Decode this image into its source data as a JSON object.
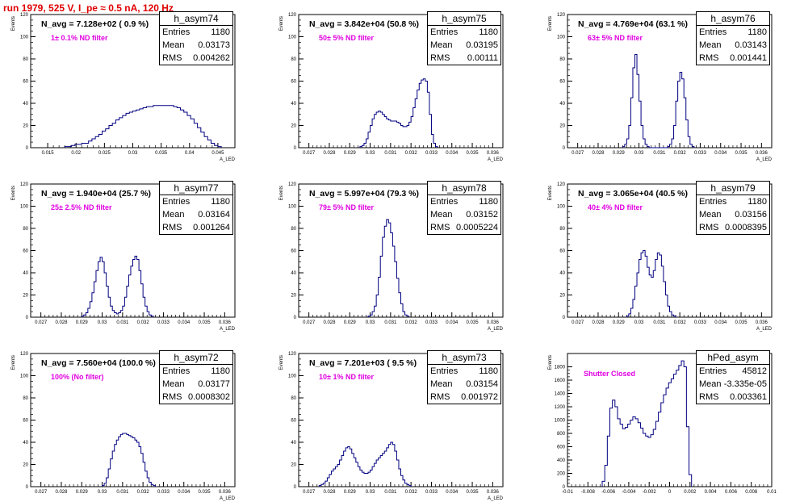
{
  "page": {
    "title": "run 1979,   525 V, I_pe ≈ 0.5 nA, 120 Hz",
    "title_color": "#e00000",
    "histogram_color": "#000080",
    "label_color": "#e000e0"
  },
  "chart_data": [
    {
      "type": "histogram",
      "hist_name": "h_asym74",
      "ylabel": "Events",
      "xlabel": "A_LED",
      "xlim": [
        0.012,
        0.048
      ],
      "xticks": [
        0.015,
        0.02,
        0.025,
        0.03,
        0.035,
        0.04,
        0.045
      ],
      "ylim": [
        0,
        120
      ],
      "yticks": [
        0,
        20,
        40,
        60,
        80,
        100,
        120
      ],
      "header": "N_avg = 7.128e+02 ( 0.9 %)",
      "note": "1± 0.1% ND filter",
      "stats": [
        {
          "k": "Entries",
          "v": "1180"
        },
        {
          "k": "Mean",
          "v": "0.03173"
        },
        {
          "k": "RMS",
          "v": "0.004262"
        }
      ],
      "bin_start": 0.018,
      "bin_width": 0.0006,
      "counts": [
        1,
        1,
        2,
        3,
        3,
        4,
        4,
        6,
        8,
        10,
        12,
        15,
        17,
        20,
        22,
        25,
        27,
        29,
        31,
        32,
        33,
        34,
        35,
        36,
        37,
        37,
        38,
        38,
        38,
        38,
        38,
        38,
        37,
        36,
        34,
        32,
        29,
        26,
        22,
        18,
        14,
        10,
        7,
        4,
        2,
        1
      ]
    },
    {
      "type": "histogram",
      "hist_name": "h_asym75",
      "ylabel": "Events",
      "xlabel": "A_LED",
      "xlim": [
        0.0265,
        0.0365
      ],
      "xticks": [
        0.027,
        0.028,
        0.029,
        0.03,
        0.031,
        0.032,
        0.033,
        0.034,
        0.035,
        0.036
      ],
      "ylim": [
        0,
        120
      ],
      "yticks": [
        0,
        20,
        40,
        60,
        80,
        100,
        120
      ],
      "header": "N_avg = 3.842e+04 (50.8 %)",
      "note": "50± 5% ND filter",
      "stats": [
        {
          "k": "Entries",
          "v": "1180"
        },
        {
          "k": "Mean",
          "v": "0.03195"
        },
        {
          "k": "RMS",
          "v": "0.00111"
        }
      ],
      "bin_start": 0.0295,
      "bin_width": 0.0001,
      "counts": [
        1,
        2,
        4,
        8,
        14,
        20,
        26,
        30,
        32,
        33,
        32,
        30,
        28,
        26,
        25,
        24,
        24,
        24,
        23,
        22,
        20,
        19,
        19,
        20,
        23,
        28,
        36,
        44,
        52,
        58,
        61,
        62,
        60,
        50,
        30,
        12,
        4,
        1
      ]
    },
    {
      "type": "histogram",
      "hist_name": "h_asym76",
      "ylabel": "Events",
      "xlabel": "A_LED",
      "xlim": [
        0.0265,
        0.0365
      ],
      "xticks": [
        0.027,
        0.028,
        0.029,
        0.03,
        0.031,
        0.032,
        0.033,
        0.034,
        0.035,
        0.036
      ],
      "ylim": [
        0,
        120
      ],
      "yticks": [
        0,
        20,
        40,
        60,
        80,
        100,
        120
      ],
      "header": "N_avg = 4.769e+04 (63.1 %)",
      "note": "63± 5% ND filter",
      "stats": [
        {
          "k": "Entries",
          "v": "1180"
        },
        {
          "k": "Mean",
          "v": "0.03143"
        },
        {
          "k": "RMS",
          "v": "0.001441"
        }
      ],
      "bin_start": 0.0292,
      "bin_width": 0.0001,
      "counts": [
        1,
        3,
        8,
        20,
        45,
        72,
        84,
        66,
        42,
        20,
        8,
        3,
        1,
        0,
        0,
        0,
        0,
        0,
        0,
        0,
        0,
        0,
        1,
        3,
        8,
        20,
        42,
        60,
        68,
        62,
        45,
        25,
        10,
        3,
        1
      ]
    },
    {
      "type": "histogram",
      "hist_name": "h_asym77",
      "ylabel": "Events",
      "xlabel": "A_LED",
      "xlim": [
        0.0265,
        0.0365
      ],
      "xticks": [
        0.027,
        0.028,
        0.029,
        0.03,
        0.031,
        0.032,
        0.033,
        0.034,
        0.035,
        0.036
      ],
      "ylim": [
        0,
        120
      ],
      "yticks": [
        0,
        20,
        40,
        60,
        80,
        100,
        120
      ],
      "header": "N_avg = 1.940e+04 (25.7 %)",
      "note": "25± 2.5% ND filter",
      "stats": [
        {
          "k": "Entries",
          "v": "1180"
        },
        {
          "k": "Mean",
          "v": "0.03164"
        },
        {
          "k": "RMS",
          "v": "0.001264"
        }
      ],
      "bin_start": 0.029,
      "bin_width": 0.0001,
      "counts": [
        1,
        2,
        4,
        8,
        14,
        22,
        32,
        42,
        50,
        54,
        50,
        40,
        28,
        18,
        10,
        6,
        4,
        3,
        4,
        6,
        10,
        18,
        28,
        38,
        46,
        52,
        55,
        52,
        42,
        30,
        18,
        10,
        5,
        2,
        1
      ]
    },
    {
      "type": "histogram",
      "hist_name": "h_asym78",
      "ylabel": "Events",
      "xlabel": "A_LED",
      "xlim": [
        0.0265,
        0.0365
      ],
      "xticks": [
        0.027,
        0.028,
        0.029,
        0.03,
        0.031,
        0.032,
        0.033,
        0.034,
        0.035,
        0.036
      ],
      "ylim": [
        0,
        120
      ],
      "yticks": [
        0,
        20,
        40,
        60,
        80,
        100,
        120
      ],
      "header": "N_avg = 5.997e+04 (79.3 %)",
      "note": "79± 5% ND filter",
      "stats": [
        {
          "k": "Entries",
          "v": "1180"
        },
        {
          "k": "Mean",
          "v": "0.03152"
        },
        {
          "k": "RMS",
          "v": "0.0005224"
        }
      ],
      "bin_start": 0.0299,
      "bin_width": 0.0001,
      "counts": [
        1,
        2,
        5,
        10,
        20,
        36,
        55,
        72,
        82,
        88,
        85,
        76,
        64,
        50,
        35,
        22,
        12,
        5,
        2,
        1
      ]
    },
    {
      "type": "histogram",
      "hist_name": "h_asym79",
      "ylabel": "Events",
      "xlabel": "A_LED",
      "xlim": [
        0.0265,
        0.0365
      ],
      "xticks": [
        0.027,
        0.028,
        0.029,
        0.03,
        0.031,
        0.032,
        0.033,
        0.034,
        0.035,
        0.036
      ],
      "ylim": [
        0,
        120
      ],
      "yticks": [
        0,
        20,
        40,
        60,
        80,
        100,
        120
      ],
      "header": "N_avg = 3.065e+04 (40.5 %)",
      "note": "40± 4% ND filter",
      "stats": [
        {
          "k": "Entries",
          "v": "1180"
        },
        {
          "k": "Mean",
          "v": "0.03156"
        },
        {
          "k": "RMS",
          "v": "0.0008395"
        }
      ],
      "bin_start": 0.0294,
      "bin_width": 0.0001,
      "counts": [
        1,
        3,
        8,
        16,
        28,
        40,
        52,
        58,
        60,
        55,
        45,
        38,
        36,
        42,
        52,
        58,
        56,
        46,
        32,
        20,
        10,
        5,
        2,
        1
      ]
    },
    {
      "type": "histogram",
      "hist_name": "h_asym72",
      "ylabel": "Events",
      "xlabel": "A_LED",
      "xlim": [
        0.0265,
        0.0365
      ],
      "xticks": [
        0.027,
        0.028,
        0.029,
        0.03,
        0.031,
        0.032,
        0.033,
        0.034,
        0.035,
        0.036
      ],
      "ylim": [
        0,
        120
      ],
      "yticks": [
        0,
        20,
        40,
        60,
        80,
        100,
        120
      ],
      "header": "N_avg = 7.560e+04 (100.0 %)",
      "note": "100% (No filter)",
      "stats": [
        {
          "k": "Entries",
          "v": "1180"
        },
        {
          "k": "Mean",
          "v": "0.03177"
        },
        {
          "k": "RMS",
          "v": "0.0008302"
        }
      ],
      "bin_start": 0.03,
      "bin_width": 0.0001,
      "counts": [
        1,
        3,
        8,
        16,
        25,
        32,
        38,
        42,
        45,
        47,
        48,
        48,
        47,
        46,
        45,
        44,
        42,
        40,
        36,
        30,
        22,
        14,
        8,
        4,
        2,
        1
      ]
    },
    {
      "type": "histogram",
      "hist_name": "h_asym73",
      "ylabel": "Events",
      "xlabel": "A_LED",
      "xlim": [
        0.0265,
        0.0365
      ],
      "xticks": [
        0.027,
        0.028,
        0.029,
        0.03,
        0.031,
        0.032,
        0.033,
        0.034,
        0.035,
        0.036
      ],
      "ylim": [
        0,
        120
      ],
      "yticks": [
        0,
        20,
        40,
        60,
        80,
        100,
        120
      ],
      "header": "N_avg = 7.201e+03 ( 9.5 %)",
      "note": "10± 1% ND filter",
      "stats": [
        {
          "k": "Entries",
          "v": "1180"
        },
        {
          "k": "Mean",
          "v": "0.03154"
        },
        {
          "k": "RMS",
          "v": "0.001972"
        }
      ],
      "bin_start": 0.0275,
      "bin_width": 0.0001,
      "counts": [
        1,
        2,
        3,
        5,
        8,
        11,
        14,
        16,
        18,
        20,
        24,
        28,
        32,
        35,
        36,
        34,
        30,
        26,
        22,
        18,
        15,
        13,
        12,
        12,
        13,
        15,
        18,
        21,
        24,
        26,
        28,
        30,
        32,
        35,
        38,
        40,
        38,
        32,
        24,
        16,
        10,
        6,
        3,
        2,
        1
      ]
    },
    {
      "type": "histogram",
      "hist_name": "hPed_asym",
      "ylabel": "Events",
      "xlabel": "",
      "xlim": [
        -0.01,
        0.01
      ],
      "xticks": [
        -0.01,
        -0.008,
        -0.006,
        -0.004,
        -0.002,
        0,
        0.002,
        0.004,
        0.006,
        0.008,
        0.01
      ],
      "ylim": [
        0,
        2000
      ],
      "yticks": [
        0,
        200,
        400,
        600,
        800,
        1000,
        1200,
        1400,
        1600,
        1800
      ],
      "header": "",
      "note": "Shutter Closed",
      "stats": [
        {
          "k": "Entries",
          "v": "45812"
        },
        {
          "k": "Mean",
          "v": "-3.335e-05"
        },
        {
          "k": "RMS",
          "v": "0.003361"
        }
      ],
      "bin_start": -0.0066,
      "bin_width": 0.00025,
      "counts": [
        80,
        320,
        760,
        1180,
        1300,
        1200,
        1020,
        940,
        870,
        890,
        940,
        1000,
        1050,
        1020,
        960,
        880,
        800,
        760,
        740,
        780,
        860,
        980,
        1120,
        1260,
        1380,
        1480,
        1560,
        1620,
        1690,
        1750,
        1820,
        1890,
        1800,
        900,
        180
      ]
    }
  ]
}
